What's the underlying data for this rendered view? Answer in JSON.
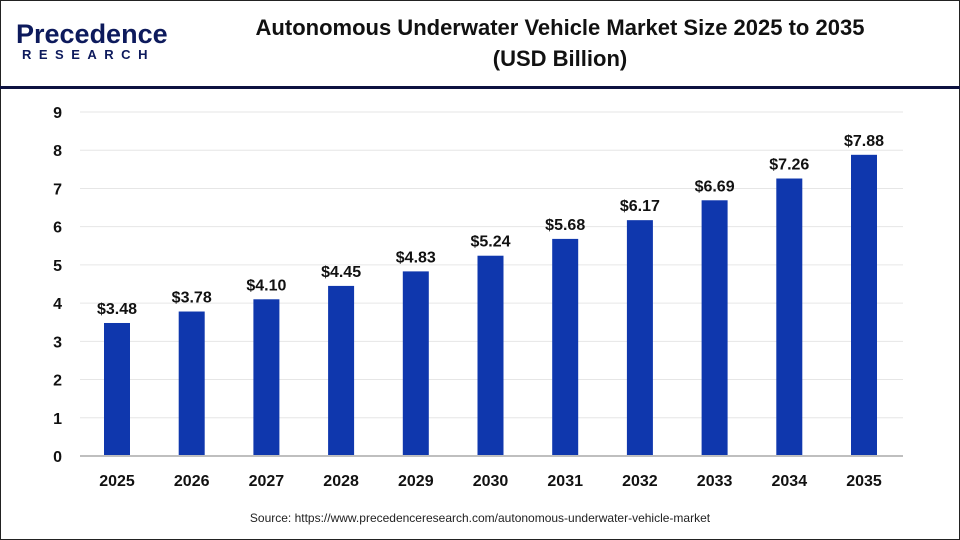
{
  "header": {
    "logo_text": "Precedence",
    "logo_subtext": "RESEARCH",
    "title_line1": "Autonomous Underwater Vehicle Market Size 2025 to 2035",
    "title_line2": "(USD Billion)"
  },
  "source": "Source: https://www.precedenceresearch.com/autonomous-underwater-vehicle-market",
  "colors": {
    "bar": "#0f37ad",
    "gridline": "#e6e6e6",
    "axis": "#bfbfbf",
    "header_rule": "#0d1240"
  },
  "chart_data": {
    "type": "bar",
    "title": "Autonomous Underwater Vehicle Market Size 2025 to 2035 (USD Billion)",
    "categories": [
      "2025",
      "2026",
      "2027",
      "2028",
      "2029",
      "2030",
      "2031",
      "2032",
      "2033",
      "2034",
      "2035"
    ],
    "values": [
      3.48,
      3.78,
      4.1,
      4.45,
      4.83,
      5.24,
      5.68,
      6.17,
      6.69,
      7.26,
      7.88
    ],
    "data_labels": [
      "$3.48",
      "$3.78",
      "$4.10",
      "$4.45",
      "$4.83",
      "$5.24",
      "$5.68",
      "$6.17",
      "$6.69",
      "$7.26",
      "$7.88"
    ],
    "yticks": [
      0,
      1,
      2,
      3,
      4,
      5,
      6,
      7,
      8,
      9
    ],
    "ylim": [
      0,
      9
    ],
    "grid": true,
    "legend": "none"
  }
}
